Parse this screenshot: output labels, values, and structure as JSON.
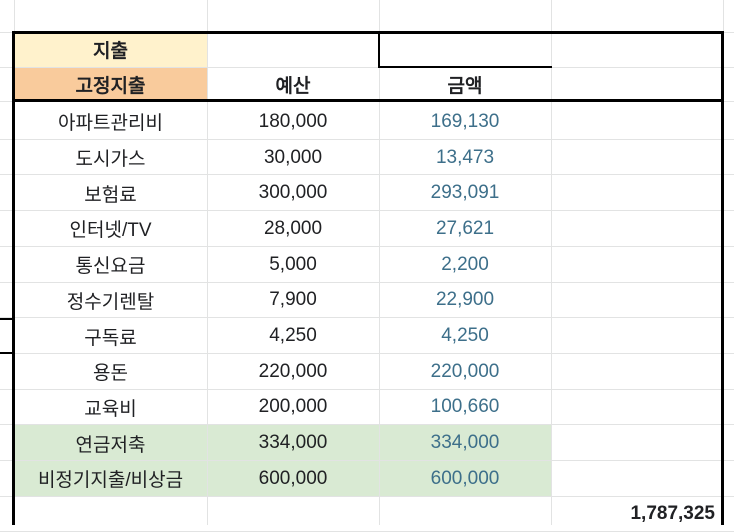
{
  "sheet": {
    "section_title": "지출",
    "header": {
      "category": "고정지출",
      "budget": "예산",
      "amount": "금액"
    },
    "rows": [
      {
        "item": "아파트관리비",
        "budget": "180,000",
        "amount": "169,130",
        "highlight": false
      },
      {
        "item": "도시가스",
        "budget": "30,000",
        "amount": "13,473",
        "highlight": false
      },
      {
        "item": "보험료",
        "budget": "300,000",
        "amount": "293,091",
        "highlight": false
      },
      {
        "item": "인터넷/TV",
        "budget": "28,000",
        "amount": "27,621",
        "highlight": false
      },
      {
        "item": "통신요금",
        "budget": "5,000",
        "amount": "2,200",
        "highlight": false
      },
      {
        "item": "정수기렌탈",
        "budget": "7,900",
        "amount": "22,900",
        "highlight": false
      },
      {
        "item": "구독료",
        "budget": "4,250",
        "amount": "4,250",
        "highlight": false
      },
      {
        "item": "용돈",
        "budget": "220,000",
        "amount": "220,000",
        "highlight": false
      },
      {
        "item": "교육비",
        "budget": "200,000",
        "amount": "100,660",
        "highlight": false
      },
      {
        "item": "연금저축",
        "budget": "334,000",
        "amount": "334,000",
        "highlight": true
      },
      {
        "item": "비정기지출/비상금",
        "budget": "600,000",
        "amount": "600,000",
        "highlight": true
      }
    ],
    "total": "1,787,325"
  },
  "colors": {
    "section_fill": "#fff2cc",
    "header_fill": "#f9cb9c",
    "highlight_fill": "#d9ead3",
    "amount_text": "#3d6f8a"
  }
}
